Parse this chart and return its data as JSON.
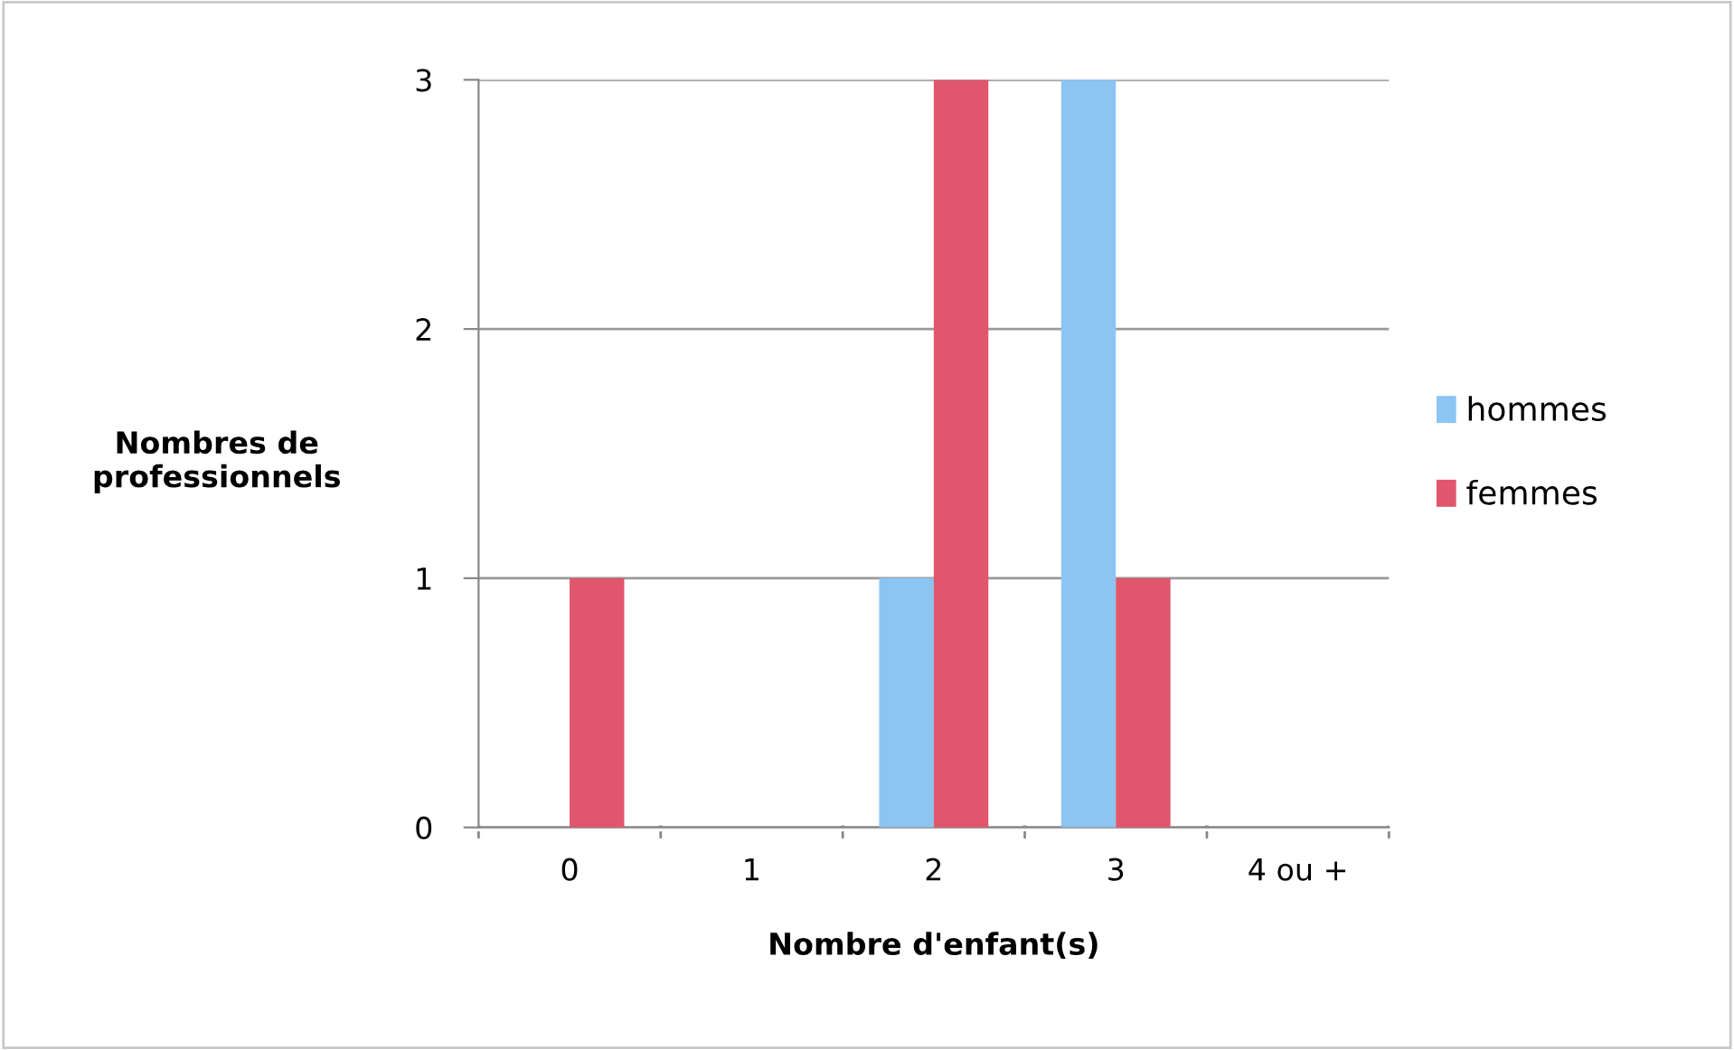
{
  "chart_data": {
    "type": "bar",
    "xlabel": "Nombre d'enfant(s)",
    "ylabel": "Nombres de\nprofessionnels",
    "categories": [
      "0",
      "1",
      "2",
      "3",
      "4 ou +"
    ],
    "series": [
      {
        "name": "hommes",
        "color": "#8cc4f2",
        "values": [
          0,
          0,
          1,
          3,
          0
        ]
      },
      {
        "name": "femmes",
        "color": "#e0566c",
        "values": [
          1,
          0,
          3,
          1,
          0
        ]
      }
    ],
    "ylim": [
      0,
      3
    ],
    "yticks": [
      0,
      1,
      2,
      3
    ],
    "grid": "y",
    "legend": "right"
  }
}
